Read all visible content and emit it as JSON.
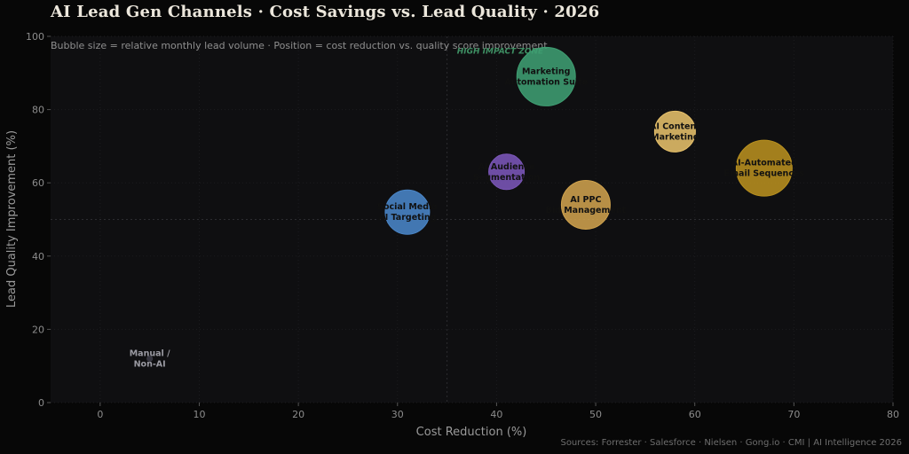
{
  "header": {
    "title": "AI Lead Gen Channels  ·  Cost Savings vs. Lead Quality  ·  2026",
    "source": "Sources: Forrester · Salesforce · Nielsen · Gong.io · CMI  |  AI Intelligence 2026"
  },
  "chart_data": {
    "type": "scatter",
    "title": "AI Lead Gen Channels  ·  Cost Savings vs. Lead Quality  ·  2026",
    "subtitle": "Bubble size = relative monthly lead volume  ·  Position = cost reduction vs. quality score improvement",
    "xlabel": "Cost Reduction (%)",
    "ylabel": "Lead Quality Improvement (%)",
    "xlim": [
      -5,
      80
    ],
    "ylim": [
      0,
      100
    ],
    "xticks": [
      0,
      10,
      20,
      30,
      40,
      50,
      60,
      70,
      80
    ],
    "yticks": [
      0,
      20,
      40,
      60,
      80,
      100
    ],
    "reference_lines": {
      "x": 35,
      "y": 50
    },
    "zone_annotation": {
      "text": "HIGH IMPACT ZONE",
      "x": 36,
      "y": 96
    },
    "grid": true,
    "points": [
      {
        "label": [
          "Manual /",
          "Non-AI"
        ],
        "x": 5,
        "y": 12,
        "size": 6,
        "color": "#3a3a44",
        "text_color": "#9a9aa2"
      },
      {
        "label": [
          "Social Media",
          "AI Targeting"
        ],
        "x": 31,
        "y": 52,
        "size": 50,
        "color": "#4a86c8",
        "text_color": "#111111"
      },
      {
        "label": [
          "AI Audience",
          "Segmentation"
        ],
        "x": 41,
        "y": 63,
        "size": 40,
        "color": "#7b56b8",
        "text_color": "#111111"
      },
      {
        "label": [
          "Marketing",
          "Automation Suite"
        ],
        "x": 45,
        "y": 89,
        "size": 66,
        "color": "#3f9e72",
        "text_color": "#111111"
      },
      {
        "label": [
          "AI PPC",
          "Bid Management"
        ],
        "x": 49,
        "y": 54,
        "size": 55,
        "color": "#cfa24d",
        "text_color": "#111111"
      },
      {
        "label": [
          "AI Content",
          "Marketing"
        ],
        "x": 58,
        "y": 74,
        "size": 46,
        "color": "#e6c06a",
        "text_color": "#111111"
      },
      {
        "label": [
          "AI-Automated",
          "Email Sequences"
        ],
        "x": 67,
        "y": 64,
        "size": 63,
        "color": "#b8901f",
        "text_color": "#111111"
      }
    ]
  }
}
